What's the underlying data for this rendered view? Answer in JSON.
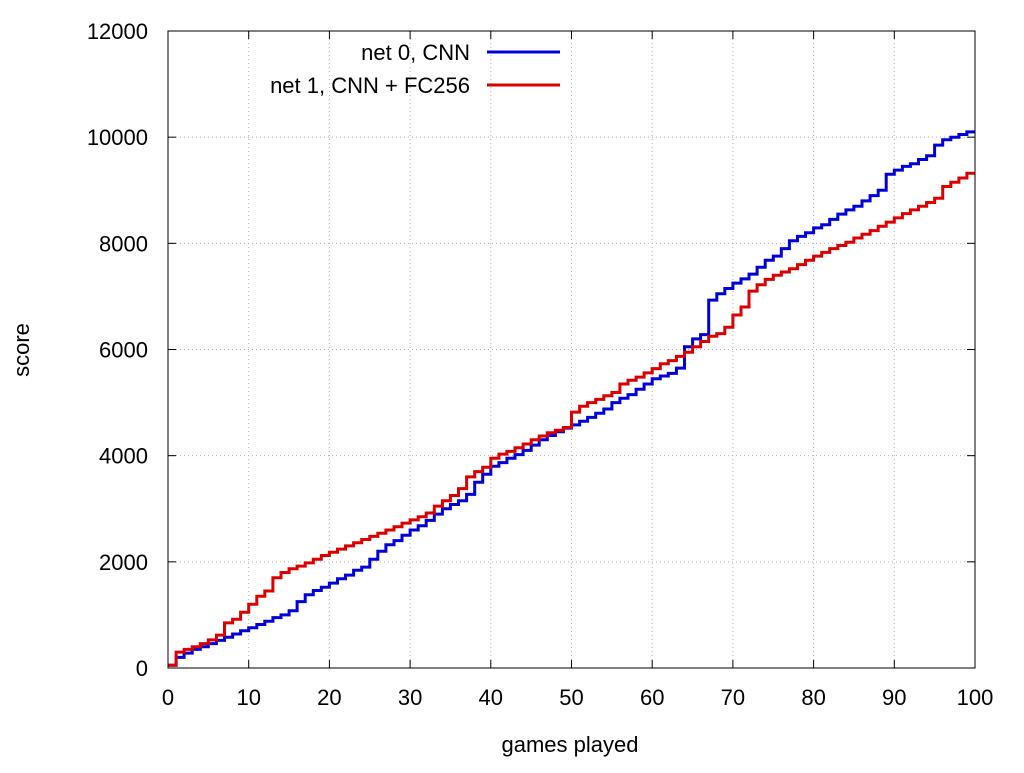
{
  "chart_data": {
    "type": "line",
    "title": "",
    "xlabel": "games played",
    "ylabel": "score",
    "xlim": [
      0,
      100
    ],
    "ylim": [
      0,
      12000
    ],
    "x_ticks": [
      0,
      10,
      20,
      30,
      40,
      50,
      60,
      70,
      80,
      90,
      100
    ],
    "y_ticks": [
      0,
      2000,
      4000,
      6000,
      8000,
      10000,
      12000
    ],
    "grid": true,
    "step": true,
    "legend_position": "top-center",
    "series": [
      {
        "name": "net 0, CNN",
        "color": "#0000dd",
        "x": [
          0,
          1,
          2,
          3,
          4,
          5,
          6,
          7,
          8,
          9,
          10,
          11,
          12,
          13,
          14,
          15,
          16,
          17,
          18,
          19,
          20,
          21,
          22,
          23,
          24,
          25,
          26,
          27,
          28,
          29,
          30,
          31,
          32,
          33,
          34,
          35,
          36,
          37,
          38,
          39,
          40,
          41,
          42,
          43,
          44,
          45,
          46,
          47,
          48,
          49,
          50,
          51,
          52,
          53,
          54,
          55,
          56,
          57,
          58,
          59,
          60,
          61,
          62,
          63,
          64,
          65,
          66,
          67,
          68,
          69,
          70,
          71,
          72,
          73,
          74,
          75,
          76,
          77,
          78,
          79,
          80,
          81,
          82,
          83,
          84,
          85,
          86,
          87,
          88,
          89,
          90,
          91,
          92,
          93,
          94,
          95,
          96,
          97,
          98,
          99
        ],
        "values": [
          50,
          200,
          280,
          350,
          400,
          460,
          520,
          580,
          640,
          700,
          760,
          820,
          880,
          950,
          1000,
          1080,
          1250,
          1380,
          1460,
          1520,
          1600,
          1680,
          1750,
          1840,
          1900,
          2050,
          2200,
          2320,
          2400,
          2500,
          2600,
          2680,
          2780,
          2900,
          3000,
          3080,
          3150,
          3270,
          3500,
          3650,
          3800,
          3870,
          3950,
          4020,
          4100,
          4200,
          4300,
          4380,
          4450,
          4520,
          4580,
          4650,
          4720,
          4800,
          4880,
          5000,
          5080,
          5150,
          5250,
          5350,
          5450,
          5500,
          5550,
          5650,
          6050,
          6200,
          6280,
          6930,
          7050,
          7150,
          7250,
          7330,
          7420,
          7550,
          7680,
          7760,
          7900,
          8050,
          8130,
          8200,
          8290,
          8350,
          8450,
          8550,
          8630,
          8700,
          8800,
          8900,
          9000,
          9300,
          9380,
          9450,
          9500,
          9580,
          9650,
          9850,
          9950,
          10000,
          10050,
          10100
        ]
      },
      {
        "name": "net 1, CNN + FC256",
        "color": "#dd0000",
        "x": [
          0,
          1,
          2,
          3,
          4,
          5,
          6,
          7,
          8,
          9,
          10,
          11,
          12,
          13,
          14,
          15,
          16,
          17,
          18,
          19,
          20,
          21,
          22,
          23,
          24,
          25,
          26,
          27,
          28,
          29,
          30,
          31,
          32,
          33,
          34,
          35,
          36,
          37,
          38,
          39,
          40,
          41,
          42,
          43,
          44,
          45,
          46,
          47,
          48,
          49,
          50,
          51,
          52,
          53,
          54,
          55,
          56,
          57,
          58,
          59,
          60,
          61,
          62,
          63,
          64,
          65,
          66,
          67,
          68,
          69,
          70,
          71,
          72,
          73,
          74,
          75,
          76,
          77,
          78,
          79,
          80,
          81,
          82,
          83,
          84,
          85,
          86,
          87,
          88,
          89,
          90,
          91,
          92,
          93,
          94,
          95,
          96,
          97,
          98,
          99
        ],
        "values": [
          50,
          300,
          350,
          400,
          460,
          530,
          620,
          850,
          920,
          1050,
          1200,
          1350,
          1450,
          1700,
          1800,
          1870,
          1920,
          1980,
          2050,
          2120,
          2180,
          2240,
          2300,
          2360,
          2420,
          2480,
          2540,
          2600,
          2660,
          2730,
          2790,
          2850,
          2920,
          3050,
          3150,
          3250,
          3380,
          3600,
          3700,
          3780,
          3950,
          4030,
          4080,
          4150,
          4220,
          4300,
          4370,
          4430,
          4480,
          4530,
          4820,
          4930,
          5000,
          5060,
          5130,
          5190,
          5350,
          5420,
          5480,
          5560,
          5640,
          5730,
          5790,
          5870,
          5950,
          6050,
          6150,
          6250,
          6300,
          6420,
          6650,
          6800,
          7100,
          7220,
          7320,
          7400,
          7460,
          7520,
          7600,
          7680,
          7760,
          7830,
          7900,
          7960,
          8020,
          8100,
          8170,
          8240,
          8320,
          8400,
          8480,
          8560,
          8630,
          8700,
          8770,
          8850,
          9070,
          9150,
          9230,
          9320
        ]
      }
    ]
  }
}
